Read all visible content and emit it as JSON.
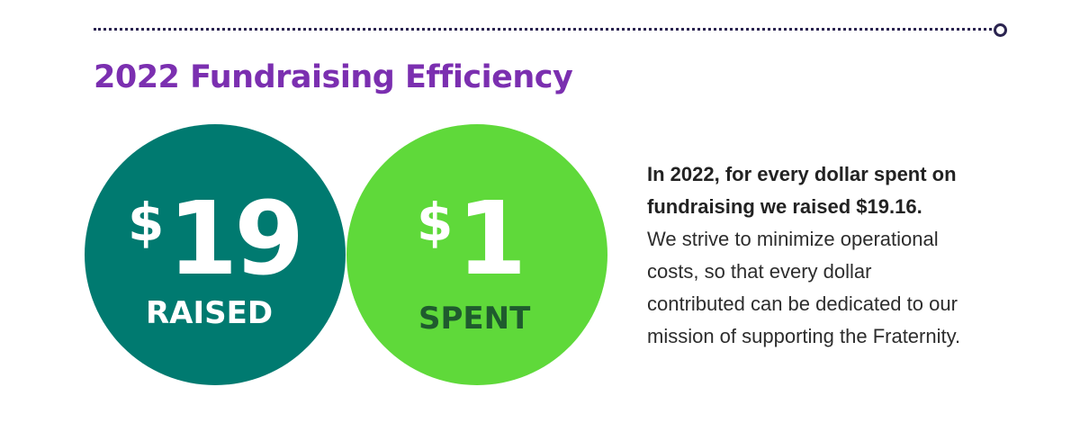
{
  "title": "2022 Fundraising Efficiency",
  "raised": {
    "currency": "$",
    "amount": "19",
    "label": "RAISED"
  },
  "spent": {
    "currency": "$",
    "amount": "1",
    "label": "SPENT"
  },
  "description": {
    "bold_line_1": "In 2022, for every dollar spent on",
    "bold_line_2": "fundraising we raised $19.16.",
    "line_1": "We strive to minimize operational",
    "line_2": "costs, so that every dollar",
    "line_3": "contributed can be dedicated to our",
    "line_4": "mission of supporting the Fraternity."
  },
  "colors": {
    "title": "#7b2fb0",
    "raised_circle": "#007a70",
    "spent_circle": "#5fd93a",
    "spent_label": "#1f5b2e",
    "divider": "#2b2450"
  }
}
